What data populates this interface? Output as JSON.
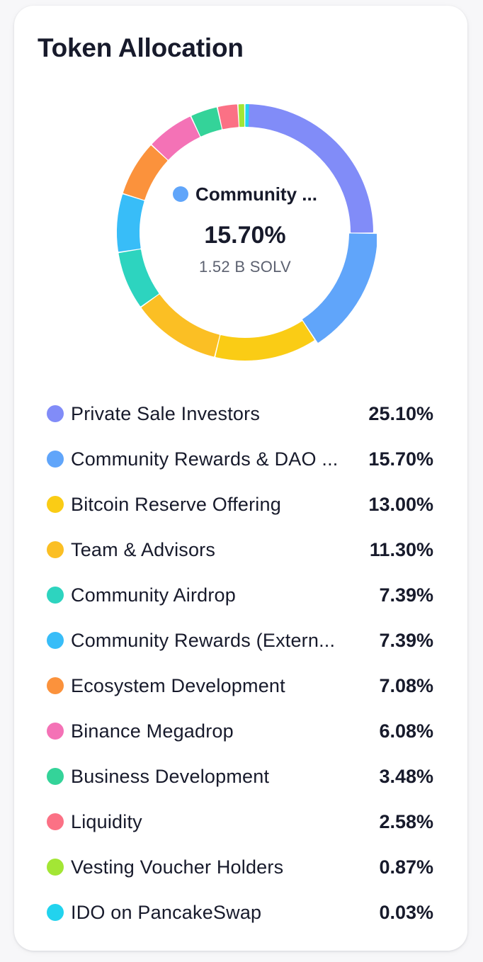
{
  "title": "Token Allocation",
  "selected": {
    "name": "Community ...",
    "percent": "15.70%",
    "amount": "1.52 B SOLV",
    "color": "#60a5fa"
  },
  "chart_data": {
    "type": "pie",
    "title": "Token Allocation",
    "unit": "%",
    "series": [
      {
        "name": "Private Sale Investors",
        "value": 25.1,
        "label": "25.10%",
        "color": "#818cf8"
      },
      {
        "name": "Community Rewards & DAO ...",
        "value": 15.7,
        "label": "15.70%",
        "color": "#60a5fa"
      },
      {
        "name": "Bitcoin Reserve Offering",
        "value": 13.0,
        "label": "13.00%",
        "color": "#facc15"
      },
      {
        "name": "Team & Advisors",
        "value": 11.3,
        "label": "11.30%",
        "color": "#fbbf24"
      },
      {
        "name": "Community Airdrop",
        "value": 7.39,
        "label": "7.39%",
        "color": "#2dd4bf"
      },
      {
        "name": "Community Rewards (Extern...",
        "value": 7.39,
        "label": "7.39%",
        "color": "#38bdf8"
      },
      {
        "name": "Ecosystem Development",
        "value": 7.08,
        "label": "7.08%",
        "color": "#fb923c"
      },
      {
        "name": "Binance Megadrop",
        "value": 6.08,
        "label": "6.08%",
        "color": "#f472b6"
      },
      {
        "name": "Business Development",
        "value": 3.48,
        "label": "3.48%",
        "color": "#34d399"
      },
      {
        "name": "Liquidity",
        "value": 2.58,
        "label": "2.58%",
        "color": "#fb7185"
      },
      {
        "name": "Vesting Voucher Holders",
        "value": 0.87,
        "label": "0.87%",
        "color": "#a3e635"
      },
      {
        "name": "IDO on PancakeSwap",
        "value": 0.03,
        "label": "0.03%",
        "color": "#22d3ee"
      }
    ]
  }
}
